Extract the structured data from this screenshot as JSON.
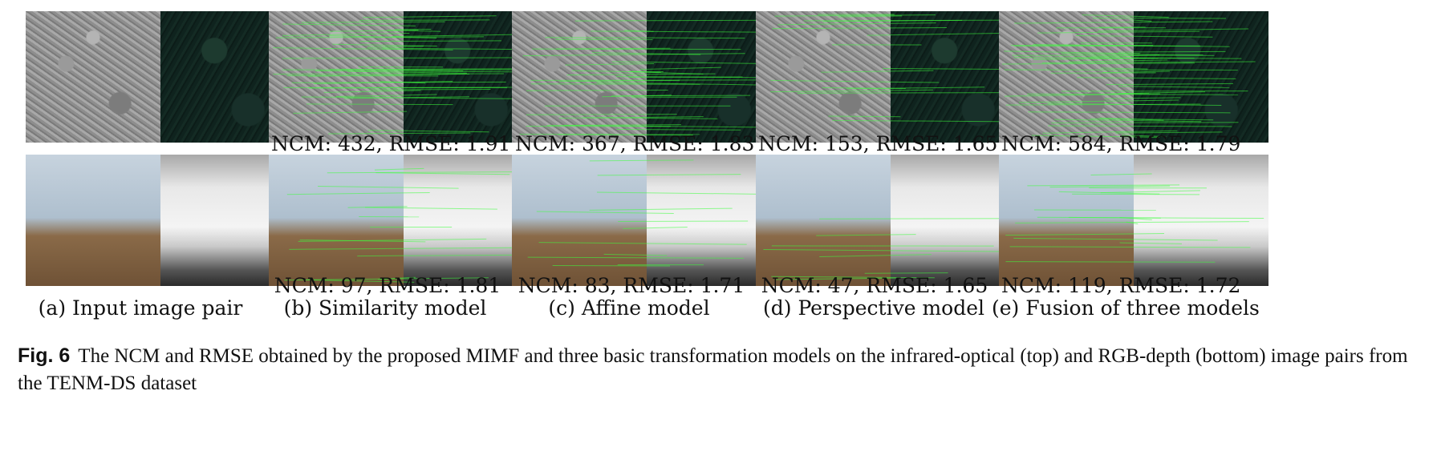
{
  "top_row": [
    {
      "metrics": ""
    },
    {
      "metrics": "NCM: 432, RMSE: 1.91"
    },
    {
      "metrics": "NCM: 367, RMSE: 1.83"
    },
    {
      "metrics": "NCM: 153, RMSE: 1.65"
    },
    {
      "metrics": "NCM: 584, RMSE: 1.79"
    }
  ],
  "bottom_row": [
    {
      "metrics": ""
    },
    {
      "metrics": "NCM: 97, RMSE: 1.81"
    },
    {
      "metrics": "NCM: 83, RMSE: 1.71"
    },
    {
      "metrics": "NCM: 47, RMSE: 1.65"
    },
    {
      "metrics": "NCM: 119, RMSE: 1.72"
    }
  ],
  "subcaptions": [
    "(a) Input image pair",
    "(b) Similarity model",
    "(c) Affine model",
    "(d) Perspective model",
    "(e) Fusion of three models"
  ],
  "caption": {
    "tag": "Fig. 6",
    "text": "The NCM and RMSE obtained by the proposed MIMF and three basic transformation models on the infrared-optical (top) and RGB-depth (bottom) image pairs from the TENM-DS dataset"
  },
  "match_color": "#3cff3c"
}
